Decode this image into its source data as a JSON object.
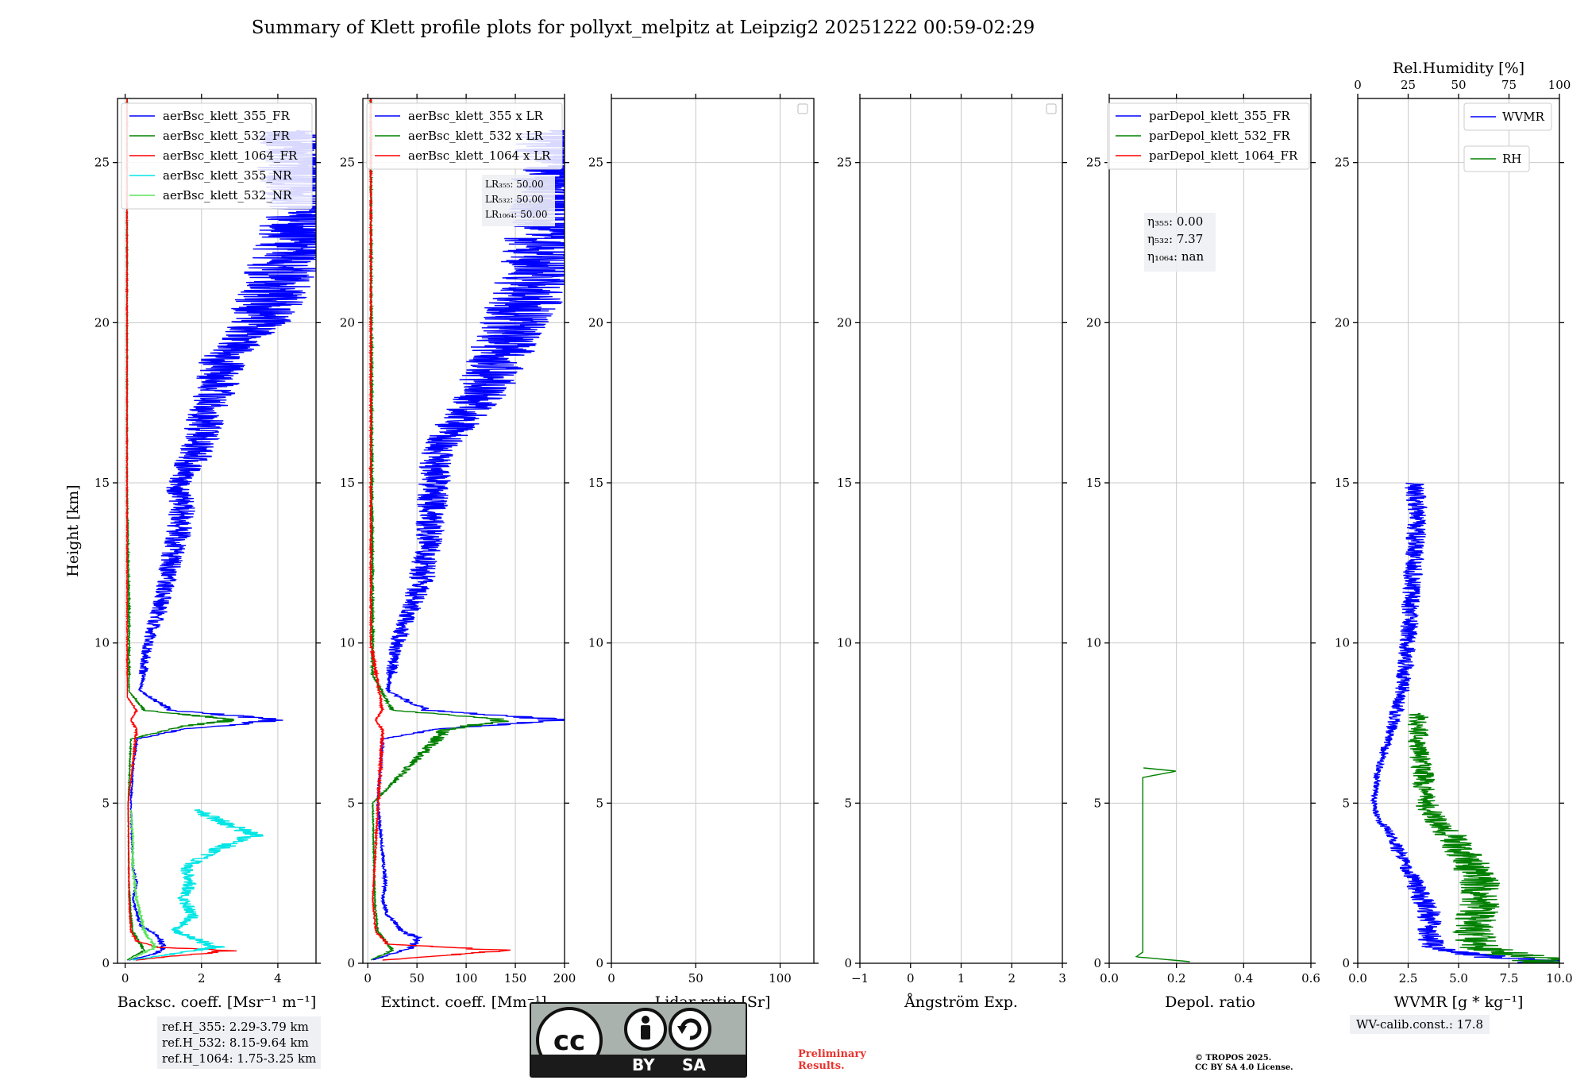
{
  "title": "Summary of Klett profile plots for pollyxt_melpitz at Leipzig2 20251222 00:59-02:29",
  "colors": {
    "b355": "#0000ff",
    "b532": "#008000",
    "r1064": "#ff0000",
    "c355nr": "#00e5e5",
    "g532nr": "#5be35b",
    "grid": "#c8c8c8"
  },
  "chart_data": [
    {
      "id": "bsc",
      "type": "line",
      "xlabel": "Backsc. coeff. [Msr⁻¹ m⁻¹]",
      "ylabel": "Height [km]",
      "xlim": [
        -0.2,
        5
      ],
      "ylim": [
        0,
        27
      ],
      "xticks": [
        "0",
        "2",
        "4"
      ],
      "xtick_values": [
        0,
        2,
        4
      ],
      "yticks": [
        "0",
        "5",
        "10",
        "15",
        "20",
        "25"
      ],
      "ytick_values": [
        0,
        5,
        10,
        15,
        20,
        25
      ],
      "grid": true,
      "legend_loc": "upper-right",
      "series": [
        {
          "name": "aerBsc_klett_355_FR",
          "color": "b355",
          "h": [
            0.1,
            0.3,
            0.5,
            0.8,
            1.2,
            2,
            2.5,
            3,
            5,
            6,
            7,
            7.3,
            7.6,
            7.9,
            8.5,
            10,
            11,
            12,
            13,
            14,
            15,
            16,
            17,
            18,
            19,
            20,
            21,
            22,
            23.5,
            25,
            26
          ],
          "v": [
            0.1,
            0.8,
            1,
            0.9,
            0.4,
            0.2,
            0.3,
            0.2,
            0.15,
            0.2,
            0.3,
            1.5,
            4.1,
            1.2,
            0.4,
            0.6,
            0.9,
            1.1,
            1.3,
            1.5,
            1.4,
            1.9,
            2.1,
            2.4,
            2.6,
            3.5,
            3.9,
            4.3,
            4.8,
            4.5,
            4.4
          ]
        },
        {
          "name": "aerBsc_klett_532_FR",
          "color": "b532",
          "h": [
            0.1,
            0.4,
            0.6,
            1,
            1.5,
            2.5,
            5,
            7,
            7.4,
            7.6,
            7.9,
            8.5,
            11,
            15,
            20,
            25,
            27
          ],
          "v": [
            0.05,
            0.5,
            0.4,
            0.2,
            0.15,
            0.1,
            0.08,
            0.15,
            1.5,
            2.9,
            0.5,
            0.1,
            0.1,
            0.05,
            0.05,
            0.05,
            0.05
          ]
        },
        {
          "name": "aerBsc_klett_1064_FR",
          "color": "r1064",
          "h": [
            0.1,
            0.25,
            0.4,
            0.5,
            0.7,
            1,
            2,
            5,
            7.3,
            7.6,
            7.9,
            8.3,
            10,
            20,
            27
          ],
          "v": [
            0.3,
            1.5,
            2.8,
            0.8,
            0.3,
            0.15,
            0.1,
            0.08,
            0.3,
            0.15,
            0.3,
            0.06,
            0.05,
            0.05,
            0.05
          ]
        },
        {
          "name": "aerBsc_klett_355_NR",
          "color": "c355nr",
          "h": [
            0.1,
            0.5,
            1,
            1.5,
            2,
            2.5,
            3,
            3.5,
            4,
            4.4,
            4.8
          ],
          "v": [
            0.2,
            2.4,
            1.3,
            1.8,
            1.5,
            1.7,
            1.6,
            2.3,
            3.4,
            2.6,
            1.8
          ]
        },
        {
          "name": "aerBsc_klett_532_NR",
          "color": "g532nr",
          "h": [
            0.1,
            0.5,
            1,
            2,
            3,
            4,
            4.8
          ],
          "v": [
            0.1,
            0.8,
            0.5,
            0.3,
            0.2,
            0.2,
            0.15
          ]
        }
      ]
    },
    {
      "id": "ext",
      "type": "line",
      "xlabel": "Extinct. coeff. [Mm⁻¹]",
      "xlim": [
        -5,
        200
      ],
      "ylim": [
        0,
        27
      ],
      "xticks": [
        "0",
        "50",
        "100",
        "150",
        "200"
      ],
      "xtick_values": [
        0,
        50,
        100,
        150,
        200
      ],
      "yticks": [
        "0",
        "5",
        "10",
        "15",
        "20",
        "25"
      ],
      "ytick_values": [
        0,
        5,
        10,
        15,
        20,
        25
      ],
      "grid": true,
      "legend_loc": "upper-right",
      "series": [
        {
          "name": "aerBsc_klett_355 x LR",
          "color": "b355",
          "h": [
            0.1,
            0.5,
            0.8,
            1,
            1.5,
            2,
            2.5,
            5,
            7,
            7.3,
            7.6,
            7.9,
            8.5,
            10,
            12,
            14,
            16,
            18,
            20,
            22,
            24,
            26
          ],
          "v": [
            5,
            45,
            50,
            35,
            20,
            15,
            18,
            10,
            15,
            70,
            200,
            60,
            20,
            30,
            55,
            65,
            70,
            120,
            150,
            180,
            190,
            200
          ]
        },
        {
          "name": "aerBsc_klett_532 x LR",
          "color": "b532",
          "h": [
            0.1,
            0.4,
            1,
            2,
            5,
            7.3,
            7.6,
            7.9,
            9,
            27
          ],
          "v": [
            3,
            25,
            10,
            7,
            5,
            80,
            140,
            25,
            5,
            3
          ]
        },
        {
          "name": "aerBsc_klett_1064 x LR",
          "color": "r1064",
          "h": [
            0.1,
            0.25,
            0.4,
            0.6,
            1,
            2,
            7.3,
            7.6,
            7.9,
            10,
            27
          ],
          "v": [
            15,
            80,
            140,
            20,
            8,
            5,
            15,
            8,
            15,
            3,
            3
          ]
        }
      ],
      "annotations": [
        {
          "label": "LR₃₅₅: 50.00"
        },
        {
          "label": "LR₅₃₂: 50.00"
        },
        {
          "label": "LR₁₀₆₄: 50.00"
        }
      ]
    },
    {
      "id": "lr",
      "type": "line",
      "xlabel": "Lidar ratio [Sr]",
      "xlim": [
        0,
        120
      ],
      "ylim": [
        0,
        27
      ],
      "xticks": [
        "0",
        "50",
        "100"
      ],
      "xtick_values": [
        0,
        50,
        100
      ],
      "yticks": [
        "0",
        "5",
        "10",
        "15",
        "20",
        "25"
      ],
      "ytick_values": [
        0,
        5,
        10,
        15,
        20,
        25
      ],
      "grid": true,
      "series": []
    },
    {
      "id": "ang",
      "type": "line",
      "xlabel": "Ångström Exp.",
      "xlim": [
        -1,
        3
      ],
      "ylim": [
        0,
        27
      ],
      "xticks": [
        "−1",
        "0",
        "1",
        "2",
        "3"
      ],
      "xtick_values": [
        -1,
        0,
        1,
        2,
        3
      ],
      "yticks": [
        "0",
        "5",
        "10",
        "15",
        "20",
        "25"
      ],
      "ytick_values": [
        0,
        5,
        10,
        15,
        20,
        25
      ],
      "grid": true,
      "series": []
    },
    {
      "id": "dep",
      "type": "line",
      "xlabel": "Depol. ratio",
      "xlim": [
        0,
        0.6
      ],
      "ylim": [
        0,
        27
      ],
      "xticks": [
        "0.0",
        "0.2",
        "0.4",
        "0.6"
      ],
      "xtick_values": [
        0,
        0.2,
        0.4,
        0.6
      ],
      "yticks": [
        "0",
        "5",
        "10",
        "15",
        "20",
        "25"
      ],
      "ytick_values": [
        0,
        5,
        10,
        15,
        20,
        25
      ],
      "grid": true,
      "legend_loc": "upper-right",
      "series": [
        {
          "name": "parDepol_klett_355_FR",
          "color": "b355",
          "h": [],
          "v": []
        },
        {
          "name": "parDepol_klett_532_FR",
          "color": "b532",
          "h": [
            0.05,
            0.2,
            0.35,
            5.8,
            6,
            6.1
          ],
          "v": [
            0.24,
            0.08,
            0.1,
            0.1,
            0.2,
            0.1
          ]
        },
        {
          "name": "parDepol_klett_1064_FR",
          "color": "r1064",
          "h": [],
          "v": []
        }
      ],
      "annotations": [
        {
          "label": "η₃₅₅: 0.00"
        },
        {
          "label": "η₅₃₂: 7.37"
        },
        {
          "label": "η₁₀₆₄: nan"
        }
      ]
    },
    {
      "id": "wv",
      "type": "line",
      "xlabel": "WVMR [g * kg⁻¹]",
      "x2label": "Rel.Humidity [%]",
      "xlim": [
        0,
        10
      ],
      "x2lim": [
        0,
        100
      ],
      "ylim": [
        0,
        27
      ],
      "xticks": [
        "0.0",
        "2.5",
        "5.0",
        "7.5",
        "10.0"
      ],
      "xtick_values": [
        0,
        2.5,
        5,
        7.5,
        10
      ],
      "x2ticks": [
        "0",
        "25",
        "50",
        "75",
        "100"
      ],
      "x2tick_values": [
        0,
        25,
        50,
        75,
        100
      ],
      "yticks": [
        "0",
        "5",
        "10",
        "15",
        "20",
        "25"
      ],
      "ytick_values": [
        0,
        5,
        10,
        15,
        20,
        25
      ],
      "grid": true,
      "legend_loc": "upper-right",
      "series": [
        {
          "name": "WVMR",
          "color": "b355",
          "h": [
            0,
            0.2,
            0.5,
            1,
            1.5,
            2,
            2.5,
            3,
            3.5,
            4,
            4.5,
            5,
            6,
            7,
            8,
            9,
            10,
            12,
            14,
            15
          ],
          "v": [
            10,
            6.5,
            3.8,
            3.5,
            3.6,
            3.2,
            2.8,
            2.5,
            2,
            1.7,
            1,
            0.8,
            1,
            1.5,
            2,
            2.3,
            2.5,
            2.7,
            3,
            2.8
          ]
        },
        {
          "name": "RH",
          "color": "b532",
          "h": [
            0,
            0.2,
            0.5,
            1,
            1.5,
            2,
            2.5,
            3,
            3.5,
            4,
            4.5,
            5,
            6,
            7,
            7.8
          ],
          "v": [
            100,
            82,
            60,
            57,
            59,
            61,
            60,
            57,
            52,
            46,
            38,
            34,
            32,
            30,
            30
          ]
        }
      ]
    }
  ],
  "refbox": {
    "line1": "ref.H_355: 2.29-3.79 km",
    "line2": "ref.H_532: 8.15-9.64 km",
    "line3": "ref.H_1064: 1.75-3.25 km"
  },
  "wvcalib": "WV-calib.const.: 17.8",
  "preliminary": {
    "line1": "Preliminary",
    "line2": "Results."
  },
  "copyright": {
    "line1": "© TROPOS 2025.",
    "line2": "CC BY SA 4.0 License."
  },
  "license_badge": {
    "by": "BY",
    "sa": "SA",
    "icons": [
      "cc-icon",
      "person-icon",
      "share-alike-icon"
    ]
  }
}
